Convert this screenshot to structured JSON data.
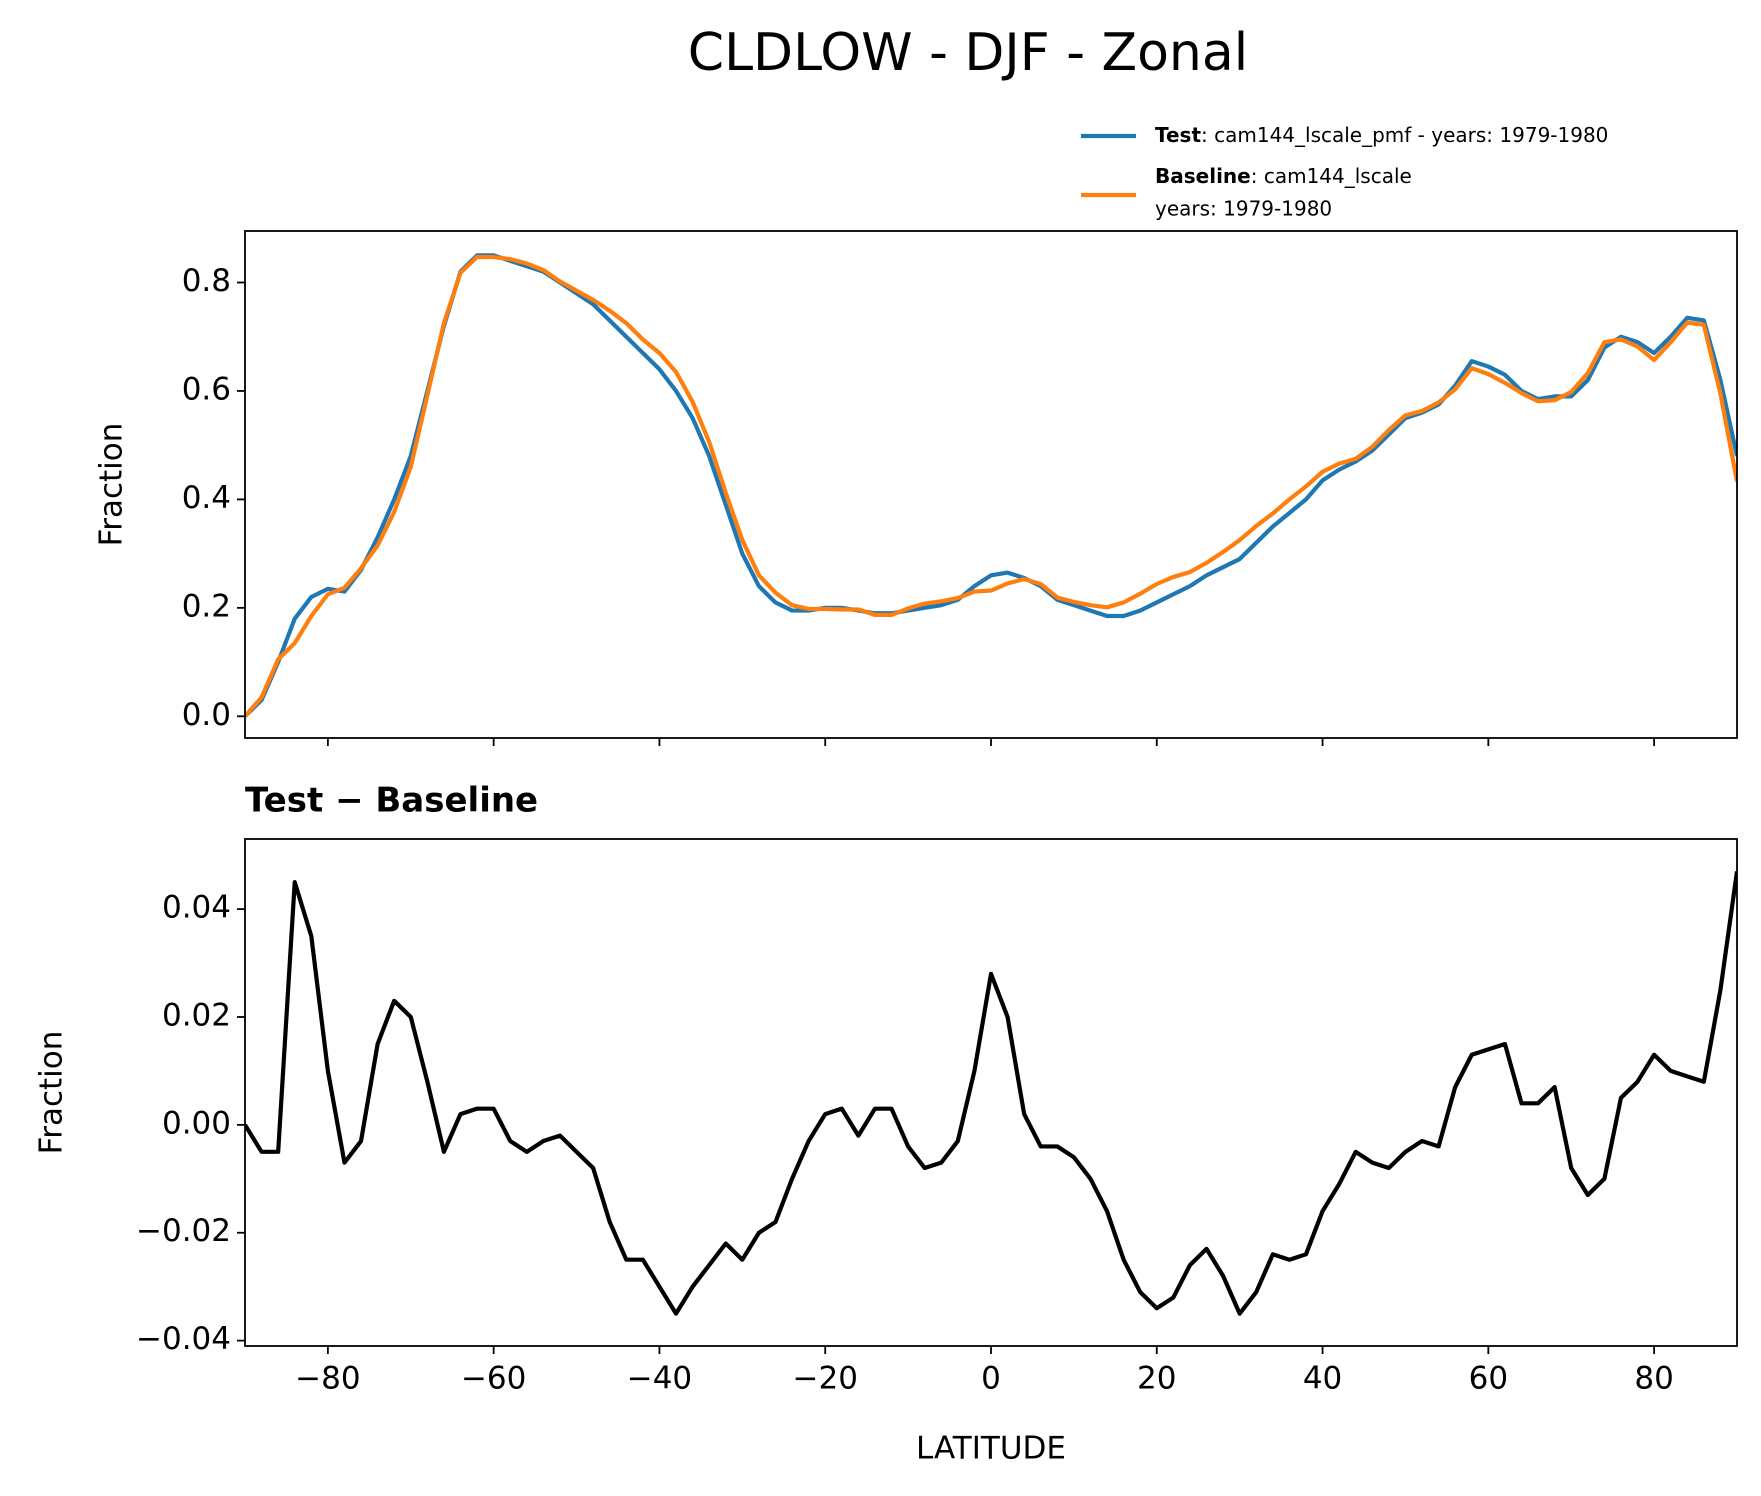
{
  "title": "CLDLOW - DJF - Zonal",
  "chart_data": [
    {
      "type": "line",
      "ylabel": "Fraction",
      "x": [
        -90,
        -88,
        -86,
        -84,
        -82,
        -80,
        -78,
        -76,
        -74,
        -72,
        -70,
        -68,
        -66,
        -64,
        -62,
        -60,
        -58,
        -56,
        -54,
        -52,
        -50,
        -48,
        -46,
        -44,
        -42,
        -40,
        -38,
        -36,
        -34,
        -32,
        -30,
        -28,
        -26,
        -24,
        -22,
        -20,
        -18,
        -16,
        -14,
        -12,
        -10,
        -8,
        -6,
        -4,
        -2,
        0,
        2,
        4,
        6,
        8,
        10,
        12,
        14,
        16,
        18,
        20,
        22,
        24,
        26,
        28,
        30,
        32,
        34,
        36,
        38,
        40,
        42,
        44,
        46,
        48,
        50,
        52,
        54,
        56,
        58,
        60,
        62,
        64,
        66,
        68,
        70,
        72,
        74,
        76,
        78,
        80,
        82,
        84,
        86,
        88,
        90
      ],
      "series": [
        {
          "name": "Test",
          "label": ": cam144_lscale_pmf - years: 1979-1980",
          "color": "#1f77b4",
          "values": [
            0.0,
            0.03,
            0.1,
            0.18,
            0.22,
            0.235,
            0.23,
            0.27,
            0.33,
            0.4,
            0.48,
            0.6,
            0.72,
            0.82,
            0.85,
            0.85,
            0.84,
            0.83,
            0.82,
            0.8,
            0.78,
            0.76,
            0.73,
            0.7,
            0.67,
            0.64,
            0.6,
            0.55,
            0.48,
            0.39,
            0.3,
            0.24,
            0.21,
            0.195,
            0.195,
            0.2,
            0.2,
            0.195,
            0.19,
            0.19,
            0.195,
            0.2,
            0.205,
            0.215,
            0.24,
            0.26,
            0.265,
            0.255,
            0.24,
            0.215,
            0.205,
            0.195,
            0.185,
            0.185,
            0.195,
            0.21,
            0.225,
            0.24,
            0.26,
            0.275,
            0.29,
            0.32,
            0.35,
            0.375,
            0.4,
            0.435,
            0.455,
            0.47,
            0.49,
            0.52,
            0.55,
            0.56,
            0.575,
            0.61,
            0.655,
            0.645,
            0.63,
            0.6,
            0.585,
            0.59,
            0.59,
            0.62,
            0.68,
            0.7,
            0.69,
            0.67,
            0.7,
            0.735,
            0.73,
            0.62,
            0.48
          ]
        },
        {
          "name": "Baseline",
          "label": ": cam144_lscale",
          "label2": "years: 1979-1980",
          "color": "#ff7f0e",
          "values": [
            0.0,
            0.035,
            0.105,
            0.135,
            0.185,
            0.225,
            0.237,
            0.273,
            0.315,
            0.377,
            0.46,
            0.592,
            0.725,
            0.818,
            0.847,
            0.847,
            0.843,
            0.835,
            0.823,
            0.802,
            0.785,
            0.768,
            0.748,
            0.725,
            0.695,
            0.67,
            0.635,
            0.58,
            0.506,
            0.412,
            0.325,
            0.26,
            0.228,
            0.205,
            0.198,
            0.198,
            0.197,
            0.197,
            0.187,
            0.187,
            0.199,
            0.208,
            0.212,
            0.218,
            0.23,
            0.232,
            0.245,
            0.253,
            0.244,
            0.219,
            0.211,
            0.205,
            0.201,
            0.21,
            0.226,
            0.244,
            0.257,
            0.266,
            0.283,
            0.303,
            0.325,
            0.351,
            0.374,
            0.4,
            0.424,
            0.451,
            0.466,
            0.475,
            0.497,
            0.528,
            0.555,
            0.563,
            0.579,
            0.603,
            0.642,
            0.631,
            0.615,
            0.596,
            0.581,
            0.583,
            0.598,
            0.633,
            0.69,
            0.695,
            0.682,
            0.657,
            0.69,
            0.726,
            0.722,
            0.595,
            0.433
          ]
        }
      ],
      "xlim": [
        -90,
        90
      ],
      "xticks": [
        -80,
        -60,
        -40,
        -20,
        0,
        20,
        40,
        60,
        80
      ],
      "ylim": [
        -0.04,
        0.895
      ],
      "yticks": [
        {
          "value": 0,
          "label": "0.0"
        },
        {
          "value": 0.2,
          "label": "0.2"
        },
        {
          "value": 0.4,
          "label": "0.4"
        },
        {
          "value": 0.6,
          "label": "0.6"
        },
        {
          "value": 0.8,
          "label": "0.8"
        }
      ]
    },
    {
      "type": "line",
      "title": "Test − Baseline",
      "xlabel": "LATITUDE",
      "ylabel": "Fraction",
      "x": [
        -90,
        -88,
        -86,
        -84,
        -82,
        -80,
        -78,
        -76,
        -74,
        -72,
        -70,
        -68,
        -66,
        -64,
        -62,
        -60,
        -58,
        -56,
        -54,
        -52,
        -50,
        -48,
        -46,
        -44,
        -42,
        -40,
        -38,
        -36,
        -34,
        -32,
        -30,
        -28,
        -26,
        -24,
        -22,
        -20,
        -18,
        -16,
        -14,
        -12,
        -10,
        -8,
        -6,
        -4,
        -2,
        0,
        2,
        4,
        6,
        8,
        10,
        12,
        14,
        16,
        18,
        20,
        22,
        24,
        26,
        28,
        30,
        32,
        34,
        36,
        38,
        40,
        42,
        44,
        46,
        48,
        50,
        52,
        54,
        56,
        58,
        60,
        62,
        64,
        66,
        68,
        70,
        72,
        74,
        76,
        78,
        80,
        82,
        84,
        86,
        88,
        90
      ],
      "series": [
        {
          "color": "#000000",
          "values": [
            0.0,
            -0.005,
            -0.005,
            0.045,
            0.035,
            0.01,
            -0.007,
            -0.003,
            0.015,
            0.023,
            0.02,
            0.008,
            -0.005,
            0.002,
            0.003,
            0.003,
            -0.003,
            -0.005,
            -0.003,
            -0.002,
            -0.005,
            -0.008,
            -0.018,
            -0.025,
            -0.025,
            -0.03,
            -0.035,
            -0.03,
            -0.026,
            -0.022,
            -0.025,
            -0.02,
            -0.018,
            -0.01,
            -0.003,
            0.002,
            0.003,
            -0.002,
            0.003,
            0.003,
            -0.004,
            -0.008,
            -0.007,
            -0.003,
            0.01,
            0.028,
            0.02,
            0.002,
            -0.004,
            -0.004,
            -0.006,
            -0.01,
            -0.016,
            -0.025,
            -0.031,
            -0.034,
            -0.032,
            -0.026,
            -0.023,
            -0.028,
            -0.035,
            -0.031,
            -0.024,
            -0.025,
            -0.024,
            -0.016,
            -0.011,
            -0.005,
            -0.007,
            -0.008,
            -0.005,
            -0.003,
            -0.004,
            0.007,
            0.013,
            0.014,
            0.015,
            0.004,
            0.004,
            0.007,
            -0.008,
            -0.013,
            -0.01,
            0.005,
            0.008,
            0.013,
            0.01,
            0.009,
            0.008,
            0.025,
            0.047
          ]
        }
      ],
      "xlim": [
        -90,
        90
      ],
      "xticks": [
        {
          "value": -80,
          "label": "−80"
        },
        {
          "value": -60,
          "label": "−60"
        },
        {
          "value": -40,
          "label": "−40"
        },
        {
          "value": -20,
          "label": "−20"
        },
        0,
        20,
        40,
        60,
        80
      ],
      "ylim": [
        -0.041,
        0.053
      ],
      "yticks": [
        {
          "value": -0.04,
          "label": "−0.04"
        },
        {
          "value": -0.02,
          "label": "−0.02"
        },
        {
          "value": 0,
          "label": "0.00"
        },
        {
          "value": 0.02,
          "label": "0.02"
        },
        {
          "value": 0.04,
          "label": "0.04"
        }
      ]
    }
  ]
}
